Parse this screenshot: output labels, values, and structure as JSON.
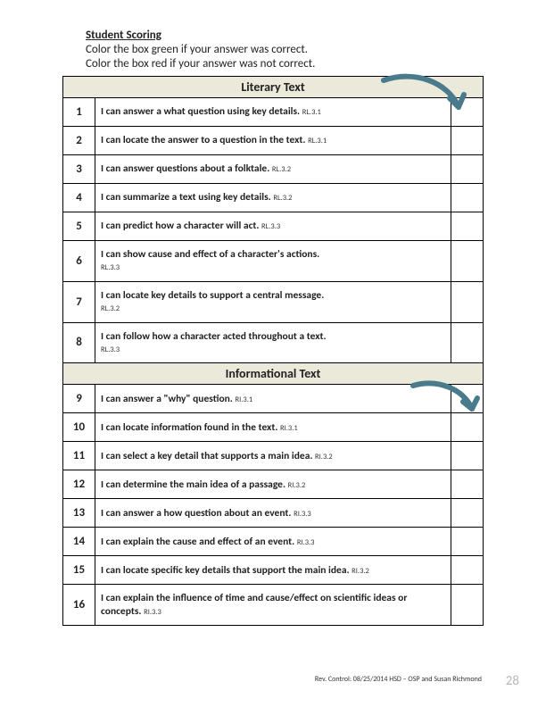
{
  "header": {
    "title": "Student Scoring",
    "line1": "Color the box green if your answer was correct.",
    "line2": "Color the box red if your answer was not correct."
  },
  "section1_title": "Literary Text",
  "section2_title": "Informational Text",
  "rows1": [
    {
      "n": "1",
      "text": "I can answer a what question using key details.",
      "std": "RL.3.1"
    },
    {
      "n": "2",
      "text": "I can locate the answer to a question in the text.",
      "std": "RL.3.1"
    },
    {
      "n": "3",
      "text": "I can answer questions about a folktale.",
      "std": "RL.3.2"
    },
    {
      "n": "4",
      "text": "I can summarize a text using key details.",
      "std": "RL.3.2"
    },
    {
      "n": "5",
      "text": "I can predict how a character will act.",
      "std": "RL.3.3"
    },
    {
      "n": "6",
      "text": "I can show cause and effect of a character's actions.",
      "std": "RL.3.3"
    },
    {
      "n": "7",
      "text": "I can locate key details to support a central message.",
      "std": "RL.3.2"
    },
    {
      "n": "8",
      "text": "I can follow how a character acted throughout a text.",
      "std": "RL.3.3"
    }
  ],
  "rows2": [
    {
      "n": "9",
      "text": "I can answer a \"why\" question.",
      "std": "RI.3.1"
    },
    {
      "n": "10",
      "text": "I can locate information found in the text.",
      "std": "RI.3.1"
    },
    {
      "n": "11",
      "text": "I can select a key detail that supports a main idea.",
      "std": "RI.3.2"
    },
    {
      "n": "12",
      "text": "I can determine the main idea of a passage.",
      "std": "RI.3.2"
    },
    {
      "n": "13",
      "text": "I can answer a how question about an event.",
      "std": "RI.3.3"
    },
    {
      "n": "14",
      "text": "I can explain  the cause and effect of an event.",
      "std": "RI.3.3"
    },
    {
      "n": "15",
      "text": "I can locate  specific key details that support the main idea.",
      "std": "RI.3.2"
    },
    {
      "n": "16",
      "text": "I can explain the influence of time and cause/effect on scientific ideas or concepts.",
      "std": "RI.3.3"
    }
  ],
  "footer": "Rev. Control: 08/25/2014 HSD – OSP and Susan Richmond",
  "page_number": "28",
  "arrow_color": "#4a7b8c"
}
